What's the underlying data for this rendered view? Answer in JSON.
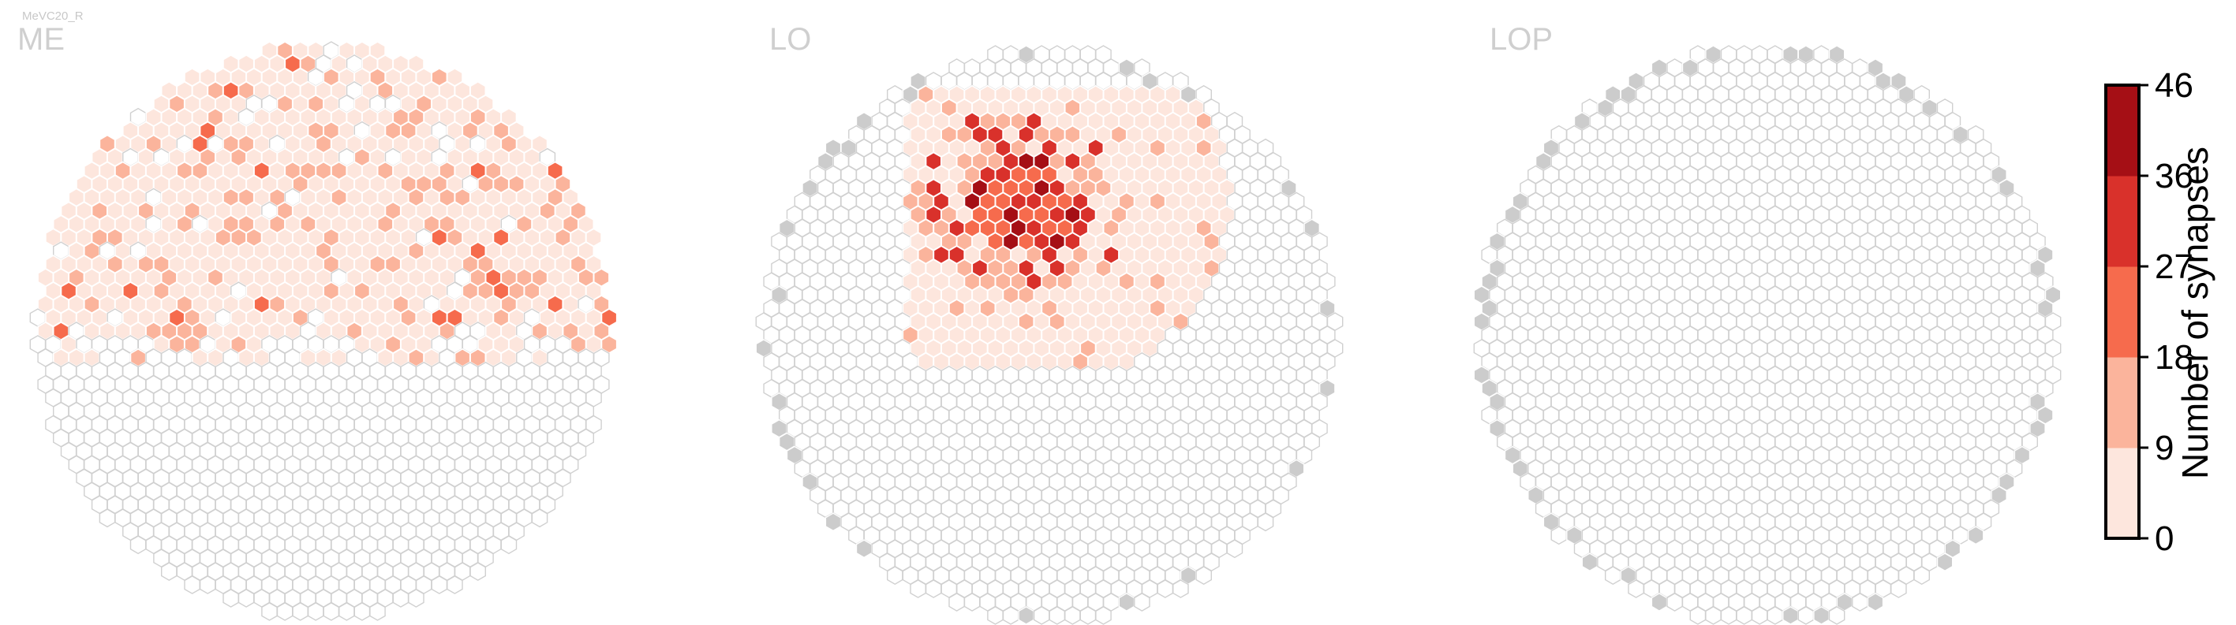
{
  "figure": {
    "cell_type_label": "MeVC20_R"
  },
  "colorbar": {
    "label": "Number of synapses",
    "ticks": [
      "0",
      "9",
      "18",
      "27",
      "36",
      "46"
    ],
    "colors": [
      "#fde6dd",
      "#fbb49c",
      "#f66b4d",
      "#d9312b",
      "#a50f15"
    ]
  },
  "chart_data": [
    {
      "type": "heatmap",
      "title": "ME",
      "grid": "hexagonal",
      "value_range": [
        0,
        46
      ],
      "colors": {
        "empty": "#ffffff",
        "edge": "#d0d0d0",
        "boundary": "#cccccc"
      },
      "hex_counts": [
        22,
        0,
        14,
        10,
        2,
        0
      ]
    },
    {
      "type": "heatmap",
      "title": "LO",
      "grid": "hexagonal",
      "value_range": [
        0,
        46
      ],
      "colors": {
        "empty": "#ffffff",
        "edge": "#d0d0d0",
        "boundary": "#cccccc"
      },
      "hex_counts": [
        28,
        0,
        42,
        32,
        16,
        9,
        4
      ]
    },
    {
      "type": "heatmap",
      "title": "LOP",
      "grid": "hexagonal",
      "value_range": [
        0,
        46
      ],
      "colors": {
        "empty": "#ffffff",
        "edge": "#d0d0d0",
        "boundary": "#cccccc"
      },
      "hex_counts": [
        96,
        0,
        0,
        0,
        0,
        0
      ]
    }
  ]
}
